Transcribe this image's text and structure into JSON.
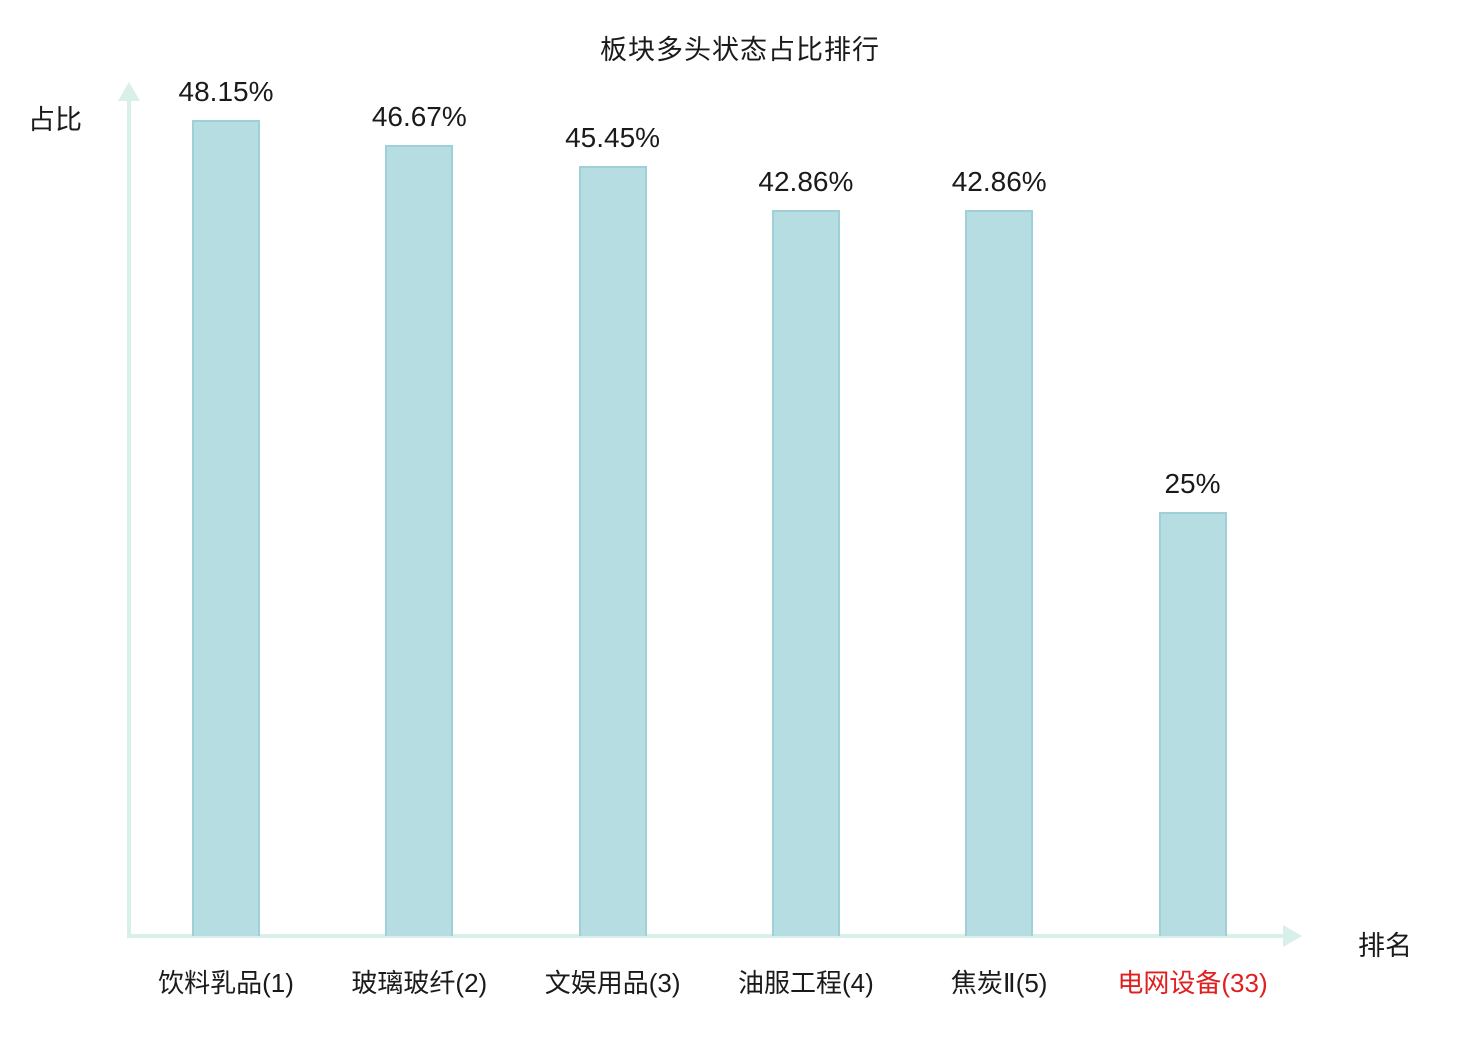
{
  "chart_data": {
    "type": "bar",
    "title": "板块多头状态占比排行",
    "xlabel": "排名",
    "ylabel": "占比",
    "categories": [
      "饮料乳品(1)",
      "玻璃玻纤(2)",
      "文娱用品(3)",
      "油服工程(4)",
      "焦炭Ⅱ(5)",
      "电网设备(33)"
    ],
    "values": [
      48.15,
      46.67,
      45.45,
      42.86,
      42.86,
      25
    ],
    "value_labels": [
      "48.15%",
      "46.67%",
      "45.45%",
      "42.86%",
      "42.86%",
      "25%"
    ],
    "highlight_index": 5,
    "highlight_color": "#e02020",
    "bar_color": "#b5dde2",
    "bar_border_color": "#a0d0d7",
    "axis_color": "#d9efe9",
    "text_color": "#1a1a1a",
    "ylim": [
      0,
      50
    ],
    "grid": false,
    "legend": false
  }
}
